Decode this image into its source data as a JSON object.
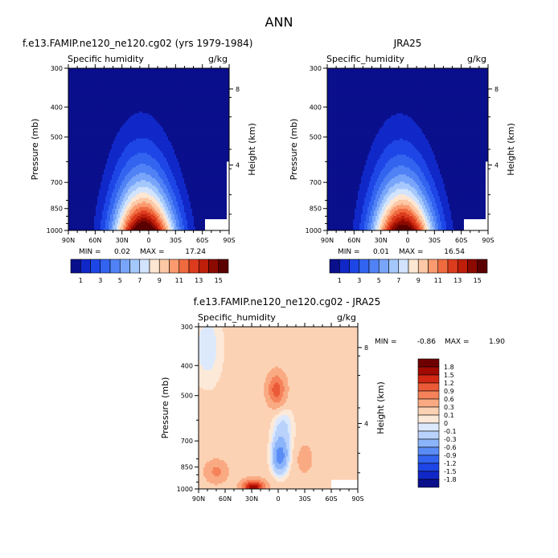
{
  "page": {
    "season": "ANN"
  },
  "colors": {
    "abs_palette": [
      "#0a0f8c",
      "#1128c8",
      "#1e46e6",
      "#3264f0",
      "#5082f5",
      "#78a5fa",
      "#a5c8fc",
      "#d2e4fd",
      "#fde6d2",
      "#fcc8a5",
      "#fa9a6e",
      "#f06a3f",
      "#dc3c1e",
      "#be1e0a",
      "#8c0a00",
      "#5a0000"
    ],
    "diff_palette": [
      "#0a0f8c",
      "#1128c8",
      "#1e46e6",
      "#3264f0",
      "#5a8cf5",
      "#8cb4fa",
      "#b9d2fc",
      "#dce9fd",
      "#fde9d8",
      "#fcd2b4",
      "#faaa82",
      "#f5825a",
      "#eb5a37",
      "#d22814",
      "#a00a00",
      "#6e0000"
    ]
  },
  "chart_data": [
    {
      "type": "contour",
      "title": "f.e13.FAMIP.ne120_ne120.cg02 (yrs 1979-1984)",
      "subtitle_left": "Specific humidity",
      "units": "g/kg",
      "ylabel": "Pressure (mb)",
      "y2label": "Height (km)",
      "x_ticks": [
        "90N",
        "60N",
        "30N",
        "0",
        "30S",
        "60S",
        "90S"
      ],
      "y_ticks": [
        "300",
        "400",
        "500",
        "700",
        "850",
        "1000"
      ],
      "y2_ticks": [
        "8",
        "4"
      ],
      "xlim": [
        90,
        -90
      ],
      "ylim": [
        1000,
        300
      ],
      "y_scale": "log",
      "min_label": "MIN =",
      "min_value": "0.02",
      "max_label": "MAX =",
      "max_value": "17.24",
      "levels": [
        1,
        2,
        3,
        4,
        5,
        6,
        7,
        8,
        9,
        10,
        11,
        12,
        13,
        14,
        15
      ],
      "legend_labels": [
        "1",
        "3",
        "5",
        "7",
        "9",
        "11",
        "13",
        "15"
      ],
      "legend_placement": "bottom",
      "peak": 17.24,
      "peak_lat": 5,
      "peak_lat_top": 10
    },
    {
      "type": "contour",
      "title": "JRA25",
      "subtitle_left": "Specific_humidity",
      "units": "g/kg",
      "ylabel": "Pressure (mb)",
      "y2label": "Height (km)",
      "x_ticks": [
        "90N",
        "60N",
        "30N",
        "0",
        "30S",
        "60S",
        "90S"
      ],
      "y_ticks": [
        "300",
        "400",
        "500",
        "700",
        "850",
        "1000"
      ],
      "y2_ticks": [
        "8",
        "4"
      ],
      "xlim": [
        90,
        -90
      ],
      "ylim": [
        1000,
        300
      ],
      "y_scale": "log",
      "min_label": "MIN =",
      "min_value": "0.01",
      "max_label": "MAX =",
      "max_value": "16.54",
      "levels": [
        1,
        2,
        3,
        4,
        5,
        6,
        7,
        8,
        9,
        10,
        11,
        12,
        13,
        14,
        15
      ],
      "legend_labels": [
        "1",
        "3",
        "5",
        "7",
        "9",
        "11",
        "13",
        "15"
      ],
      "legend_placement": "bottom",
      "peak": 16.54,
      "peak_lat": 5,
      "peak_lat_top": 10
    },
    {
      "type": "contour",
      "title": "f.e13.FAMIP.ne120_ne120.cg02 - JRA25",
      "subtitle_left": "Specific_humidity",
      "units": "g/kg",
      "ylabel": "Pressure (mb)",
      "y2label": "Height (km)",
      "x_ticks": [
        "90N",
        "60N",
        "30N",
        "0",
        "30S",
        "60S",
        "90S"
      ],
      "y_ticks": [
        "300",
        "400",
        "500",
        "700",
        "850",
        "1000"
      ],
      "y2_ticks": [
        "8",
        "4"
      ],
      "xlim": [
        90,
        -90
      ],
      "ylim": [
        1000,
        300
      ],
      "y_scale": "log",
      "min_label": "MIN =",
      "min_value": "-0.86",
      "max_label": "MAX =",
      "max_value": "1.90",
      "levels": [
        -1.8,
        -1.5,
        -1.2,
        -0.9,
        -0.6,
        -0.3,
        -0.1,
        0,
        0.1,
        0.3,
        0.6,
        0.9,
        1.2,
        1.5,
        1.8
      ],
      "legend_labels": [
        "1.8",
        "1.5",
        "1.2",
        "0.9",
        "0.6",
        "0.3",
        "0.1",
        "0",
        "-0.1",
        "-0.3",
        "-0.6",
        "-0.9",
        "-1.2",
        "-1.5",
        "-1.8"
      ],
      "legend_placement": "right"
    }
  ]
}
